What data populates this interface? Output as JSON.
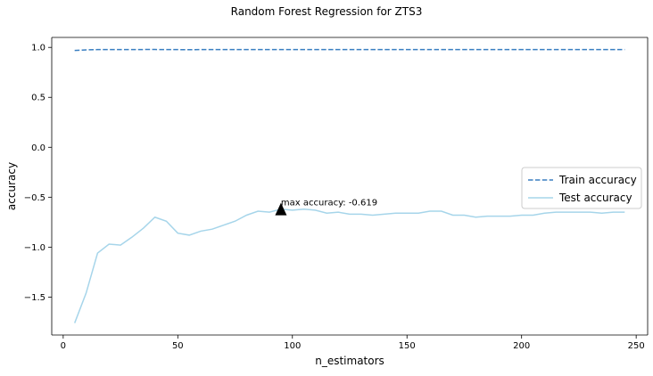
{
  "chart_data": {
    "type": "line",
    "title": "Random Forest Regression for ZTS3",
    "xlabel": "n_estimators",
    "ylabel": "accuracy",
    "xlim": [
      -5,
      255
    ],
    "ylim": [
      -1.88,
      1.1
    ],
    "xticks": [
      0,
      50,
      100,
      150,
      200,
      250
    ],
    "yticks": [
      1.0,
      0.5,
      0.0,
      -0.5,
      -1.0,
      -1.5
    ],
    "xtick_labels": [
      "0",
      "50",
      "100",
      "150",
      "200",
      "250"
    ],
    "ytick_labels": [
      "1.0",
      "0.5",
      "0.0",
      "−0.5",
      "−1.0",
      "−1.5"
    ],
    "legend_position": "center-right",
    "x": [
      5,
      10,
      15,
      20,
      25,
      30,
      35,
      40,
      45,
      50,
      55,
      60,
      65,
      70,
      75,
      80,
      85,
      90,
      95,
      100,
      105,
      110,
      115,
      120,
      125,
      130,
      135,
      140,
      145,
      150,
      155,
      160,
      165,
      170,
      175,
      180,
      185,
      190,
      195,
      200,
      205,
      210,
      215,
      220,
      225,
      230,
      235,
      240,
      245
    ],
    "series": [
      {
        "name": "Train accuracy",
        "color": "#3a7fc1",
        "dash": "dashed",
        "values": [
          0.97,
          0.975,
          0.978,
          0.978,
          0.978,
          0.978,
          0.979,
          0.979,
          0.978,
          0.978,
          0.977,
          0.978,
          0.978,
          0.978,
          0.978,
          0.978,
          0.978,
          0.978,
          0.978,
          0.978,
          0.978,
          0.978,
          0.978,
          0.978,
          0.978,
          0.978,
          0.978,
          0.978,
          0.978,
          0.978,
          0.978,
          0.978,
          0.978,
          0.978,
          0.978,
          0.978,
          0.978,
          0.978,
          0.978,
          0.978,
          0.978,
          0.978,
          0.978,
          0.978,
          0.978,
          0.978,
          0.978,
          0.978,
          0.978
        ]
      },
      {
        "name": "Test accuracy",
        "color": "#a6d5ea",
        "dash": "solid",
        "values": [
          -1.76,
          -1.46,
          -1.06,
          -0.97,
          -0.98,
          -0.9,
          -0.81,
          -0.7,
          -0.74,
          -0.86,
          -0.88,
          -0.84,
          -0.82,
          -0.78,
          -0.74,
          -0.68,
          -0.64,
          -0.65,
          -0.62,
          -0.63,
          -0.62,
          -0.63,
          -0.66,
          -0.65,
          -0.67,
          -0.67,
          -0.68,
          -0.67,
          -0.66,
          -0.66,
          -0.66,
          -0.64,
          -0.64,
          -0.68,
          -0.68,
          -0.7,
          -0.69,
          -0.69,
          -0.69,
          -0.68,
          -0.68,
          -0.66,
          -0.65,
          -0.65,
          -0.65,
          -0.65,
          -0.66,
          -0.65,
          -0.65
        ]
      }
    ],
    "annotation": {
      "text": "max accuracy: -0.619",
      "x": 95,
      "y": -0.619
    }
  }
}
